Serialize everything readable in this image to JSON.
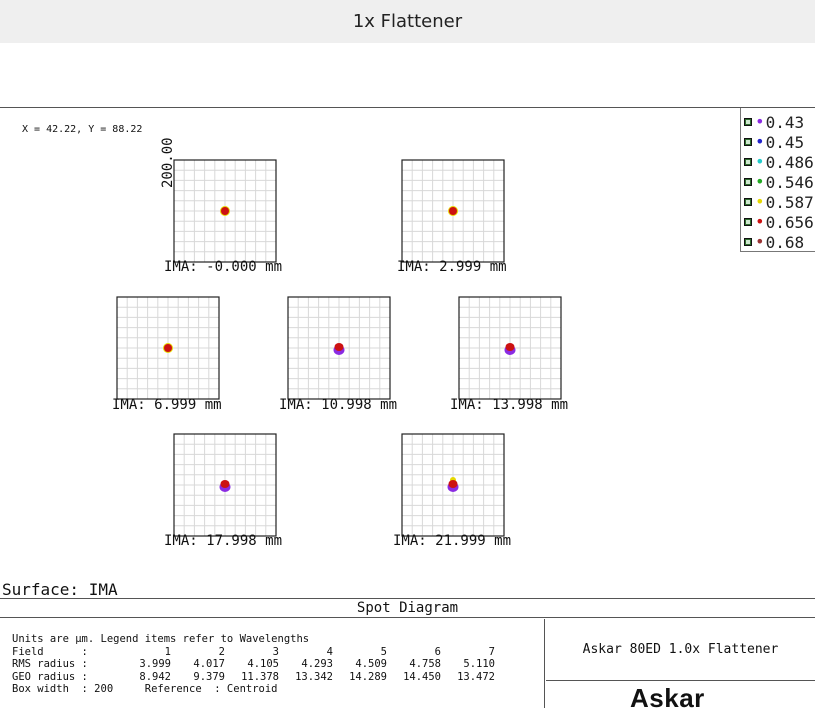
{
  "page": {
    "title": "1x Flattener"
  },
  "cursor_readout": "X = 42.22, Y = 88.22",
  "legend": {
    "entries": [
      {
        "label": "0.43",
        "color": "#8a2be2"
      },
      {
        "label": "0.45",
        "color": "#2222cc"
      },
      {
        "label": "0.486",
        "color": "#22cccc"
      },
      {
        "label": "0.546",
        "color": "#22aa22"
      },
      {
        "label": "0.587",
        "color": "#e6d800"
      },
      {
        "label": "0.656",
        "color": "#cc1111"
      },
      {
        "label": "0.68",
        "color": "#993333"
      }
    ]
  },
  "box_width_axis_label": "200.00",
  "spots": [
    {
      "label": "IMA: -0.000 mm"
    },
    {
      "label": "IMA: 2.999 mm"
    },
    {
      "label": "IMA: 6.999 mm"
    },
    {
      "label": "IMA: 10.998 mm"
    },
    {
      "label": "IMA: 13.998 mm"
    },
    {
      "label": "IMA: 17.998 mm"
    },
    {
      "label": "IMA: 21.999 mm"
    }
  ],
  "surface_label": "Surface: IMA",
  "table": {
    "title": "Spot Diagram",
    "units_note": "Units are μm. Legend items refer to Wavelengths",
    "field_label": "Field      :",
    "fields": [
      "1",
      "2",
      "3",
      "4",
      "5",
      "6",
      "7"
    ],
    "rms_label": "RMS radius :",
    "rms": [
      "3.999",
      "4.017",
      "4.105",
      "4.293",
      "4.509",
      "4.758",
      "5.110"
    ],
    "geo_label": "GEO radius :",
    "geo": [
      "8.942",
      "9.379",
      "11.378",
      "13.342",
      "14.289",
      "14.450",
      "13.472"
    ],
    "box_width": "Box width  : 200     Reference  : Centroid",
    "system_name": "Askar 80ED 1.0x Flattener",
    "logo": "Askar"
  },
  "colors": {
    "grid": "#d8d8d8",
    "border": "#222222",
    "spot_core": "#8a2be2",
    "spot_mid": "#cc1111",
    "spot_edge": "#e6d800"
  }
}
